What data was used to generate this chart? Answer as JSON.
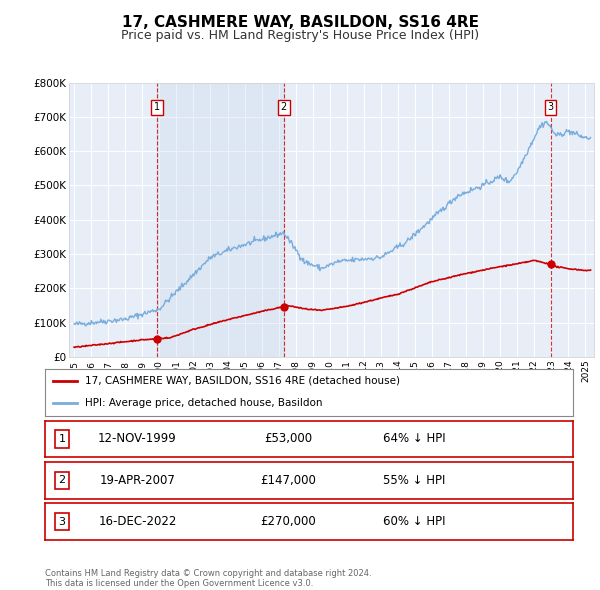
{
  "title": "17, CASHMERE WAY, BASILDON, SS16 4RE",
  "subtitle": "Price paid vs. HM Land Registry's House Price Index (HPI)",
  "ylim": [
    0,
    800000
  ],
  "yticks": [
    0,
    100000,
    200000,
    300000,
    400000,
    500000,
    600000,
    700000,
    800000
  ],
  "ytick_labels": [
    "£0",
    "£100K",
    "£200K",
    "£300K",
    "£400K",
    "£500K",
    "£600K",
    "£700K",
    "£800K"
  ],
  "background_color": "#ffffff",
  "plot_bg_color": "#e8eef8",
  "grid_color": "#ffffff",
  "title_fontsize": 11,
  "subtitle_fontsize": 9,
  "sale_year_nums": [
    1999.878,
    2007.297,
    2022.956
  ],
  "sale_prices": [
    53000,
    147000,
    270000
  ],
  "sale_labels": [
    "1",
    "2",
    "3"
  ],
  "hpi_color": "#7aaddc",
  "price_color": "#cc0000",
  "legend_label_price": "17, CASHMERE WAY, BASILDON, SS16 4RE (detached house)",
  "legend_label_hpi": "HPI: Average price, detached house, Basildon",
  "table_rows": [
    [
      "1",
      "12-NOV-1999",
      "£53,000",
      "64% ↓ HPI"
    ],
    [
      "2",
      "19-APR-2007",
      "£147,000",
      "55% ↓ HPI"
    ],
    [
      "3",
      "16-DEC-2022",
      "£270,000",
      "60% ↓ HPI"
    ]
  ],
  "footnote": "Contains HM Land Registry data © Crown copyright and database right 2024.\nThis data is licensed under the Open Government Licence v3.0.",
  "xmin_year": 1994.7,
  "xmax_year": 2025.5,
  "xtick_years": [
    1995,
    1996,
    1997,
    1998,
    1999,
    2000,
    2001,
    2002,
    2003,
    2004,
    2005,
    2006,
    2007,
    2008,
    2009,
    2010,
    2011,
    2012,
    2013,
    2014,
    2015,
    2016,
    2017,
    2018,
    2019,
    2020,
    2021,
    2022,
    2023,
    2024,
    2025
  ]
}
